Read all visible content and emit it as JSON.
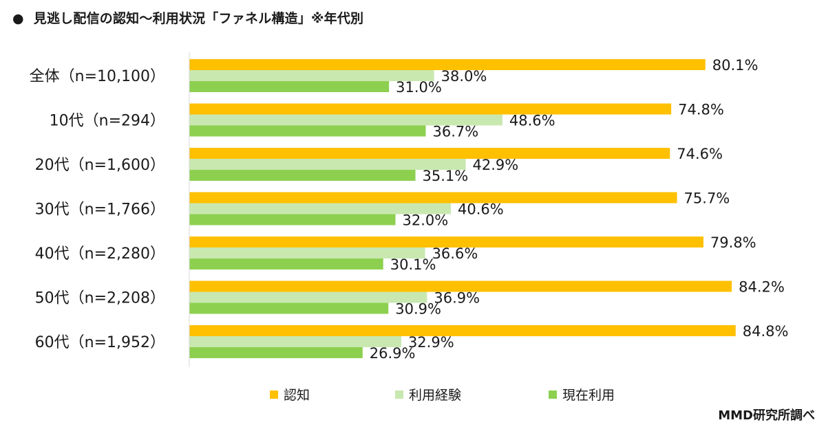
{
  "title": "見逃し配信の認知～利用状況「ファネル構造」※年代別",
  "title_bullet": "●",
  "source": "MMD研究所調べ",
  "colors": {
    "series": [
      "#FFC000",
      "#C9E8B0",
      "#8DD050"
    ],
    "axis": "#D9D9D9"
  },
  "chart_data": {
    "type": "bar",
    "orientation": "horizontal",
    "title": "見逃し配信の認知～利用状況「ファネル構造」※年代別",
    "categories": [
      "全体（n=10,100）",
      "10代（n=294）",
      "20代（n=1,600）",
      "30代（n=1,766）",
      "40代（n=2,280）",
      "50代（n=2,208）",
      "60代（n=1,952）"
    ],
    "xlim": [
      0,
      100
    ],
    "grid": false,
    "legend_position": "bottom",
    "series": [
      {
        "name": "認知",
        "values": [
          80.1,
          74.8,
          74.6,
          75.7,
          79.8,
          84.2,
          84.8
        ],
        "labels": [
          "80.1%",
          "74.8%",
          "74.6%",
          "75.7%",
          "79.8%",
          "84.2%",
          "84.8%"
        ]
      },
      {
        "name": "利用経験",
        "values": [
          38.0,
          48.6,
          42.9,
          40.6,
          36.6,
          36.9,
          32.9
        ],
        "labels": [
          "38.0%",
          "48.6%",
          "42.9%",
          "40.6%",
          "36.6%",
          "36.9%",
          "32.9%"
        ]
      },
      {
        "name": "現在利用",
        "values": [
          31.0,
          36.7,
          35.1,
          32.0,
          30.1,
          30.9,
          26.9
        ],
        "labels": [
          "31.0%",
          "36.7%",
          "35.1%",
          "32.0%",
          "30.1%",
          "30.9%",
          "26.9%"
        ]
      }
    ]
  }
}
